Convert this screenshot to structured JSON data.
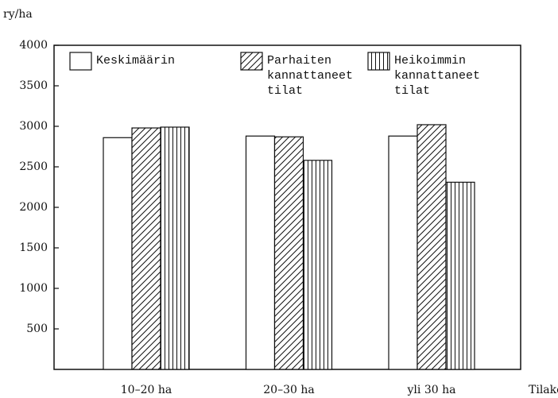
{
  "chart_data": {
    "type": "bar",
    "y_label": "ry/ha",
    "x_label": "Tilakoko",
    "categories": [
      "10–20 ha",
      "20–30 ha",
      "yli 30 ha"
    ],
    "series": [
      {
        "name": "Keskimäärin",
        "pattern": "none",
        "values": [
          2860,
          2880,
          2880
        ]
      },
      {
        "name": "Parhaiten kannattaneet tilat",
        "pattern": "diagonal",
        "values": [
          2980,
          2870,
          3020
        ]
      },
      {
        "name": "Heikoimmin kannattaneet tilat",
        "pattern": "vertical",
        "values": [
          2990,
          2580,
          2310
        ]
      }
    ],
    "ylim": [
      0,
      4000
    ],
    "yticks": [
      500,
      1000,
      1500,
      2000,
      2500,
      3000,
      3500,
      4000
    ],
    "grid": false
  }
}
